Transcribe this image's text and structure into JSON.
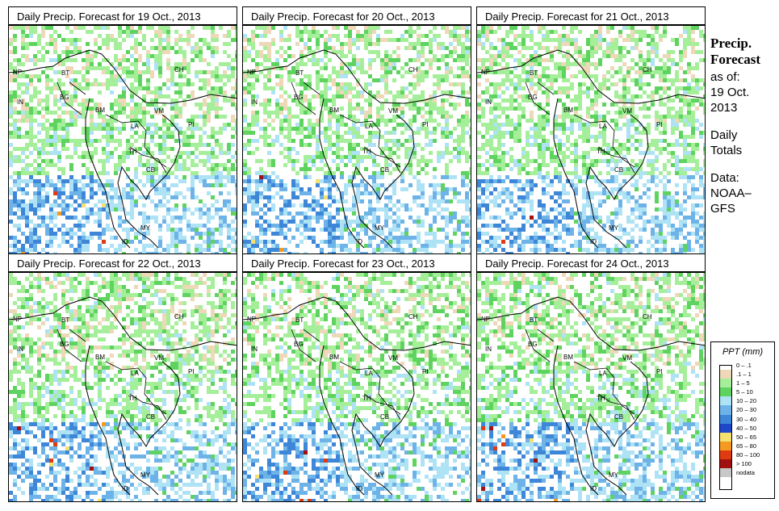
{
  "panels": [
    {
      "title": "Daily Precip. Forecast for  19 Oct., 2013"
    },
    {
      "title": "Daily Precip. Forecast for  20 Oct., 2013"
    },
    {
      "title": "Daily Precip. Forecast for  21 Oct., 2013"
    },
    {
      "title": "Daily Precip. Forecast for  22 Oct., 2013"
    },
    {
      "title": "Daily Precip. Forecast for  23 Oct., 2013"
    },
    {
      "title": "Daily Precip. Forecast for  24 Oct., 2013"
    }
  ],
  "map_labels": [
    "CH",
    "NP",
    "BT",
    "IN",
    "BG",
    "BM",
    "VM",
    "LA",
    "TH",
    "CB",
    "MY",
    "ID",
    "PI"
  ],
  "side": {
    "heading1": "Precip.",
    "heading2": "Forecast",
    "asof": "as of:",
    "date1": "19 Oct.",
    "date2": "2013",
    "daily1": "Daily",
    "daily2": "Totals",
    "data1": "Data:",
    "data2": "NOAA–",
    "data3": "GFS"
  },
  "legend": {
    "title": "PPT (mm)",
    "items": [
      {
        "label": "0 – .1",
        "color": "#ffffff"
      },
      {
        "label": ".1 – 1",
        "color": "#eed8b8"
      },
      {
        "label": "1 – 5",
        "color": "#a6ef9a"
      },
      {
        "label": "5 – 10",
        "color": "#5fd35f"
      },
      {
        "label": "10 – 20",
        "color": "#aee2f5"
      },
      {
        "label": "20 – 30",
        "color": "#6db3e8"
      },
      {
        "label": "30 – 40",
        "color": "#3d86d8"
      },
      {
        "label": "40 – 50",
        "color": "#1d47c8"
      },
      {
        "label": "50 – 65",
        "color": "#f5e070"
      },
      {
        "label": "65 – 80",
        "color": "#f59a20"
      },
      {
        "label": "80 – 100",
        "color": "#e03a10"
      },
      {
        "label": "> 100",
        "color": "#a01010"
      },
      {
        "label": "nodata",
        "color": "#c8c8c8"
      }
    ]
  }
}
